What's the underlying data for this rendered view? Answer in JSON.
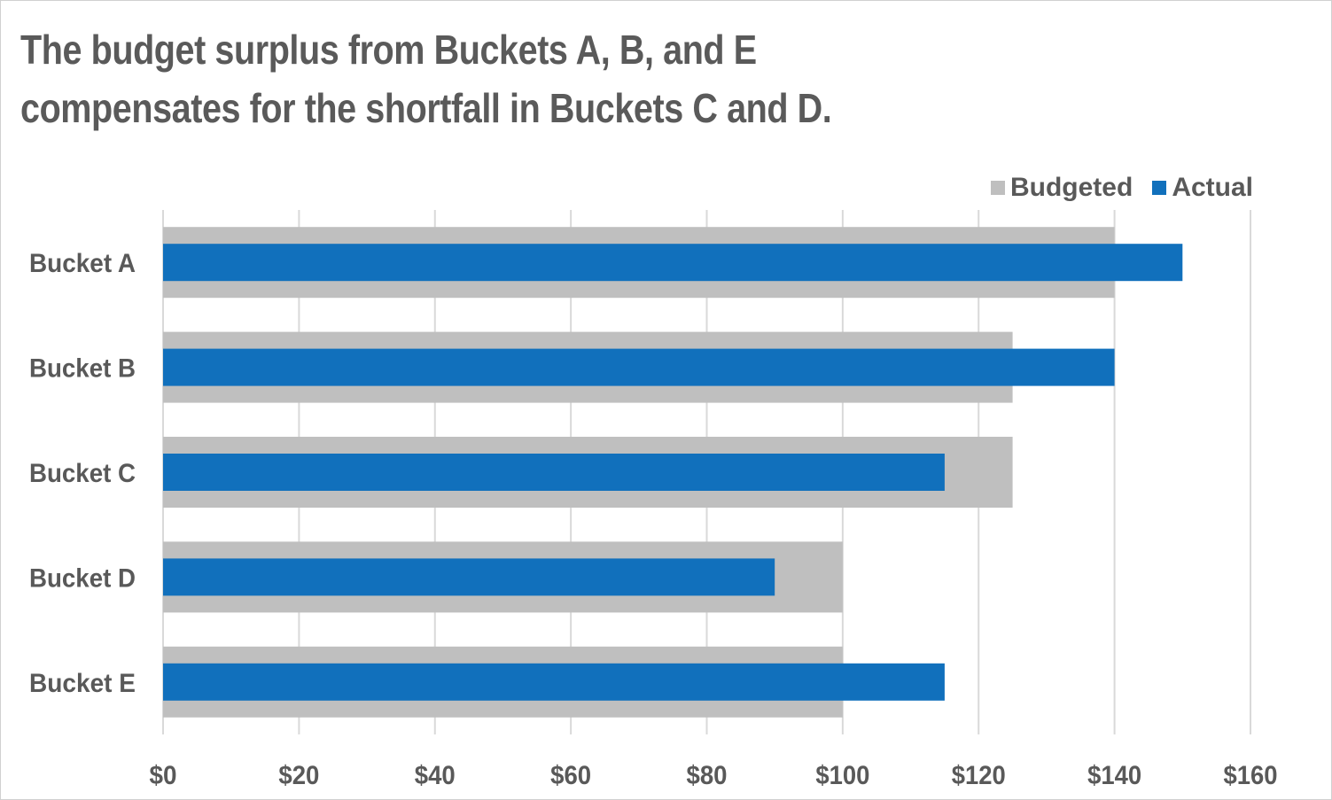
{
  "chart_data": {
    "type": "bar",
    "orientation": "horizontal",
    "title": "The budget surplus from Buckets A, B, and E compensates for the shortfall in Buckets C and D.",
    "title_lines": [
      "The budget surplus from Buckets A, B, and E",
      "compensates for the shortfall in Buckets C and D."
    ],
    "categories": [
      "Bucket A",
      "Bucket B",
      "Bucket C",
      "Bucket D",
      "Bucket E"
    ],
    "series": [
      {
        "name": "Budgeted",
        "color": "#bfbfbf",
        "values": [
          140,
          125,
          125,
          100,
          100
        ]
      },
      {
        "name": "Actual",
        "color": "#1170bc",
        "values": [
          150,
          140,
          115,
          90,
          115
        ]
      }
    ],
    "xlim": [
      0,
      160
    ],
    "xticks": [
      0,
      20,
      40,
      60,
      80,
      100,
      120,
      140,
      160
    ],
    "xtick_labels": [
      "$0",
      "$20",
      "$40",
      "$60",
      "$80",
      "$100",
      "$120",
      "$140",
      "$160"
    ],
    "xlabel": "",
    "ylabel": "",
    "grid": "vertical",
    "legend_position": "top-right"
  }
}
